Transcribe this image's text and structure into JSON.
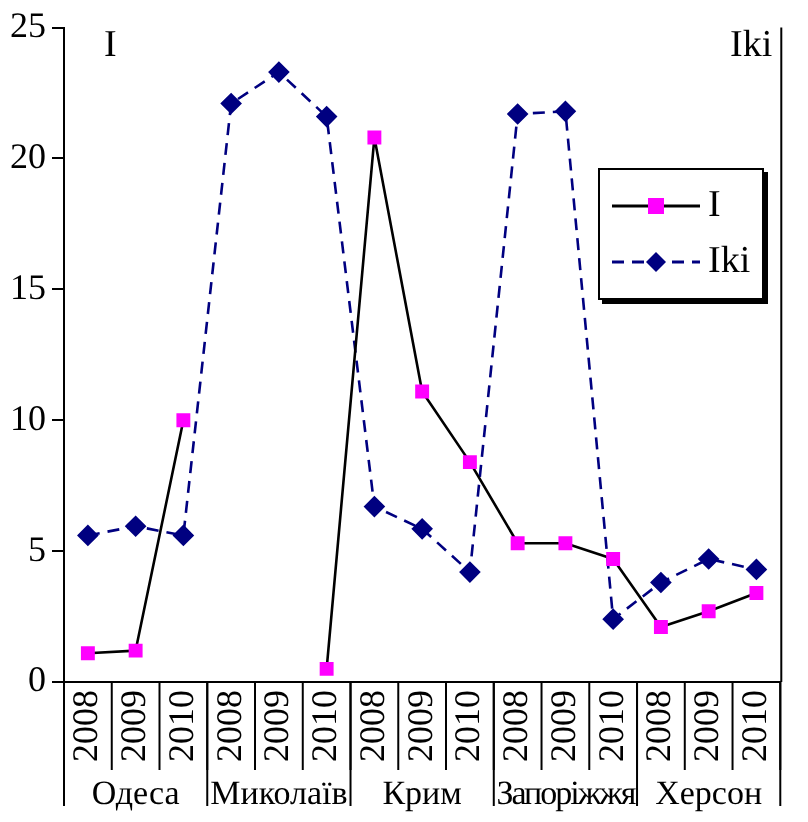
{
  "chart_data": {
    "type": "line",
    "ylabel": "I",
    "y2label": "Iki",
    "categories": [
      "2008",
      "2009",
      "2010",
      "2008",
      "2009",
      "2010",
      "2008",
      "2009",
      "2010",
      "2008",
      "2009",
      "2010",
      "2008",
      "2009",
      "2010"
    ],
    "annotations": [
      "Одеса",
      "Миколаїв",
      "Крим",
      "Запоріжжя",
      "Херсон"
    ],
    "series": [
      {
        "name": "I",
        "color": "#000000",
        "colors": [
          "#ff00ff",
          "#ff00ff",
          "#ff00ff",
          "#ff00ff",
          "#ff00ff",
          "#ff00ff",
          "#ff00ff",
          "#ff00ff",
          "#ff00ff",
          "#ff00ff",
          "#ff00ff",
          "#ff00ff",
          "#ff00ff",
          "#ff00ff",
          "#ff00ff"
        ],
        "marker": "square",
        "line_style": "solid",
        "values": [
          1.1,
          1.2,
          10.0,
          null,
          null,
          0.5,
          20.8,
          11.1,
          8.4,
          5.3,
          5.3,
          4.7,
          2.1,
          2.7,
          3.4
        ]
      },
      {
        "name": "Iki",
        "color": "#000080",
        "marker": "diamond",
        "line_style": "dashed",
        "values": [
          5.6,
          5.95,
          5.6,
          22.1,
          23.3,
          21.6,
          6.7,
          5.85,
          4.2,
          21.7,
          21.8,
          2.4,
          3.8,
          4.7,
          4.3
        ]
      }
    ],
    "ylim": [
      0,
      25
    ],
    "yticks": [
      0,
      5,
      10,
      15,
      20,
      25
    ],
    "grid": false,
    "legend": "top right"
  }
}
